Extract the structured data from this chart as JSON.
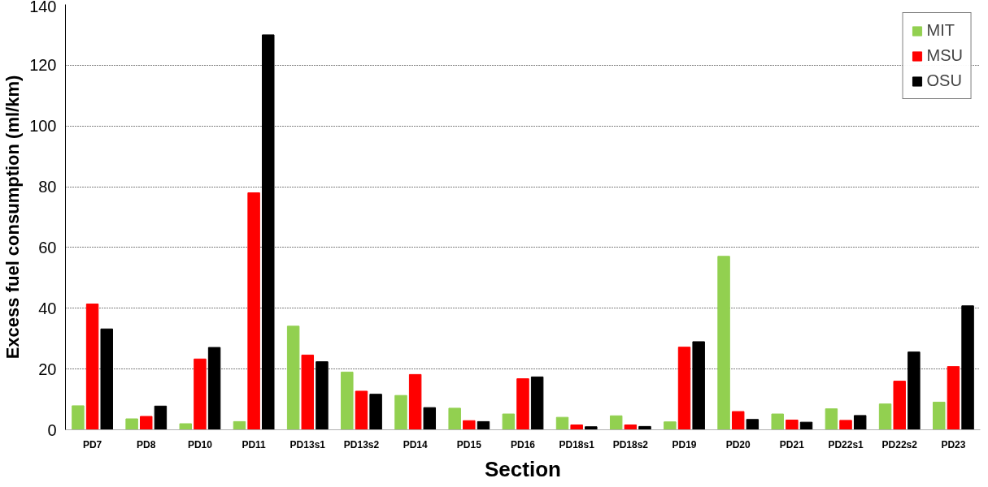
{
  "chart_data": {
    "type": "bar",
    "xlabel": "Section",
    "ylabel": "Excess fuel consumption (ml/km)",
    "categories": [
      "PD7",
      "PD8",
      "PD10",
      "PD11",
      "PD13s1",
      "PD13s2",
      "PD14",
      "PD15",
      "PD16",
      "PD18s1",
      "PD18s2",
      "PD19",
      "PD20",
      "PD21",
      "PD22s1",
      "PD22s2",
      "PD23"
    ],
    "series": [
      {
        "name": "MIT",
        "color": "#92d050",
        "values": [
          7.9,
          3.6,
          2.0,
          2.7,
          34.1,
          19.0,
          11.3,
          7.1,
          5.2,
          4.1,
          4.6,
          2.6,
          57.1,
          5.2,
          6.9,
          8.5,
          9.1
        ]
      },
      {
        "name": "MSU",
        "color": "#ff0000",
        "values": [
          41.4,
          4.4,
          23.3,
          78.0,
          24.6,
          12.7,
          18.2,
          3.0,
          16.8,
          1.6,
          1.6,
          27.2,
          6.0,
          3.2,
          3.1,
          16.0,
          20.8
        ]
      },
      {
        "name": "OSU",
        "color": "#000000",
        "values": [
          33.2,
          7.8,
          27.1,
          130.0,
          22.4,
          11.7,
          7.3,
          2.7,
          17.4,
          1.0,
          1.1,
          29.0,
          3.4,
          2.5,
          4.7,
          25.6,
          40.8
        ]
      }
    ],
    "ylim": [
      0,
      140
    ],
    "yticks": [
      0,
      20,
      40,
      60,
      80,
      100,
      120,
      140
    ],
    "grid": "y",
    "legend": "top right"
  }
}
